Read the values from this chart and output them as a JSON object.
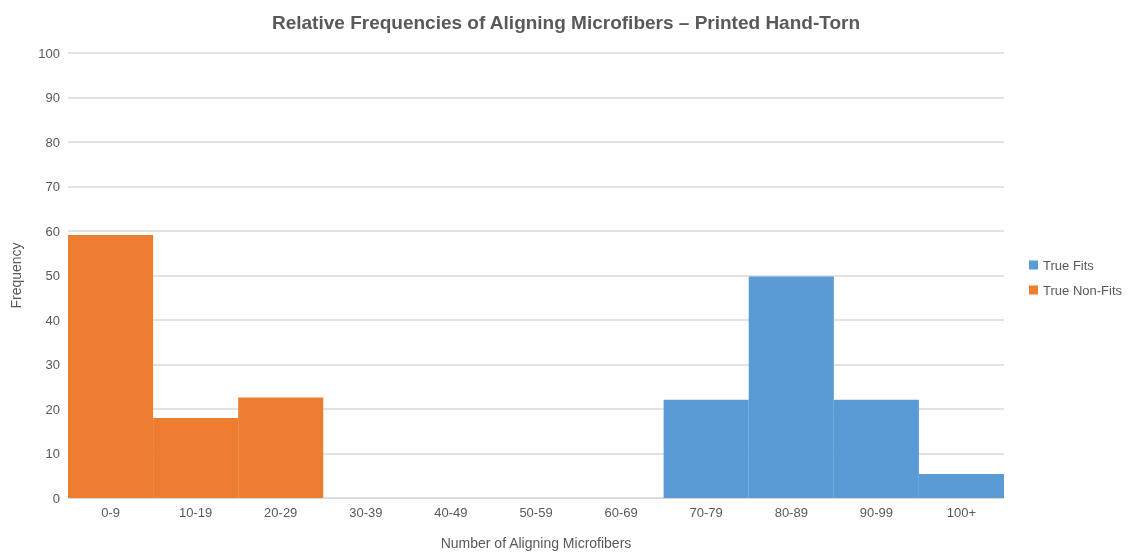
{
  "chart_data": {
    "type": "bar",
    "title": "Relative Frequencies of Aligning Microfibers – Printed Hand-Torn",
    "xlabel": "Number of Aligning Microfibers",
    "ylabel": "Frequency",
    "categories": [
      "0-9",
      "10-19",
      "20-29",
      "30-39",
      "40-49",
      "50-59",
      "60-69",
      "70-79",
      "80-89",
      "90-99",
      "100+"
    ],
    "series": [
      {
        "name": "True Fits",
        "color": "#5b9bd5",
        "values": [
          0,
          0,
          0,
          0,
          0,
          0,
          0,
          22.1,
          49.8,
          22.1,
          5.4
        ]
      },
      {
        "name": "True Non-Fits",
        "color": "#ed7d31",
        "values": [
          59.1,
          18,
          22.6,
          0,
          0,
          0,
          0,
          0,
          0,
          0,
          0
        ]
      }
    ],
    "stacked": true,
    "ylim": [
      0,
      100
    ],
    "yticks": [
      0,
      10,
      20,
      30,
      40,
      50,
      60,
      70,
      80,
      90,
      100
    ],
    "grid": "y",
    "legend": "right"
  }
}
